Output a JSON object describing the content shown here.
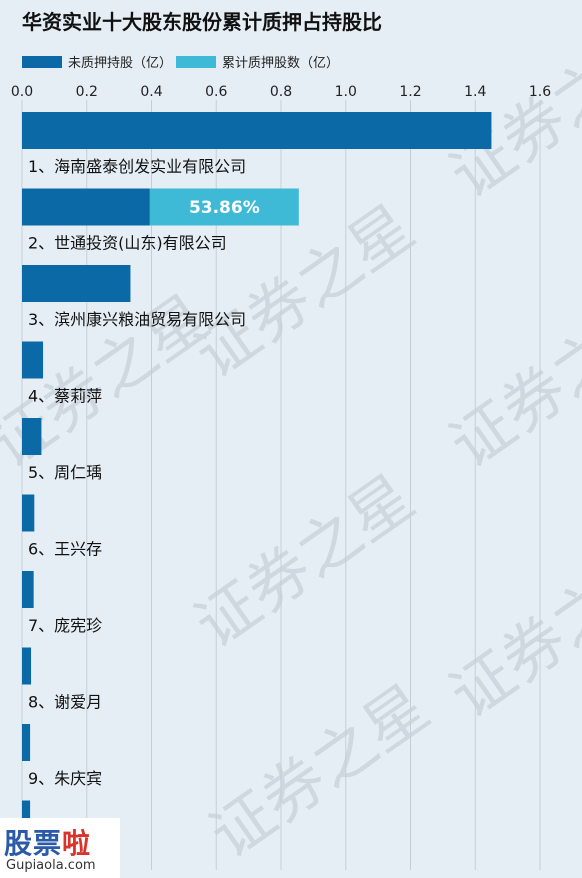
{
  "title": "华资实业十大股东股份累计质押占持股比",
  "legend": [
    {
      "label": "未质押持股（亿）",
      "color": "#0b6aa5"
    },
    {
      "label": "累计质押股数（亿）",
      "color": "#3fbad6"
    }
  ],
  "watermark": "证券之星",
  "logo": {
    "text_a": "股票",
    "text_b": "啦",
    "url": "Gupiaola.com"
  },
  "chart_data": {
    "type": "bar",
    "orientation": "horizontal",
    "stacked": true,
    "xlim": [
      0,
      1.6
    ],
    "xticks": [
      "0.0",
      "0.2",
      "0.4",
      "0.6",
      "0.8",
      "1.0",
      "1.2",
      "1.4",
      "1.6"
    ],
    "grid": true,
    "legend_position": "top-left",
    "categories": [
      "1、海南盛泰创发实业有限公司",
      "2、世通投资(山东)有限公司",
      "3、滨州康兴粮油贸易有限公司",
      "4、蔡莉萍",
      "5、周仁瑀",
      "6、王兴存",
      "7、庞宪珍",
      "8、谢爱月",
      "9、朱庆宾",
      ""
    ],
    "series": [
      {
        "name": "未质押持股（亿）",
        "color": "#0b6aa5",
        "values": [
          1.45,
          0.395,
          0.335,
          0.065,
          0.06,
          0.038,
          0.036,
          0.028,
          0.025,
          0.025
        ]
      },
      {
        "name": "累计质押股数（亿）",
        "color": "#3fbad6",
        "values": [
          0,
          0.46,
          0,
          0,
          0,
          0,
          0,
          0,
          0,
          0
        ]
      }
    ],
    "annotations": [
      "",
      "53.86%",
      "",
      "",
      "",
      "",
      "",
      "",
      "",
      ""
    ]
  }
}
